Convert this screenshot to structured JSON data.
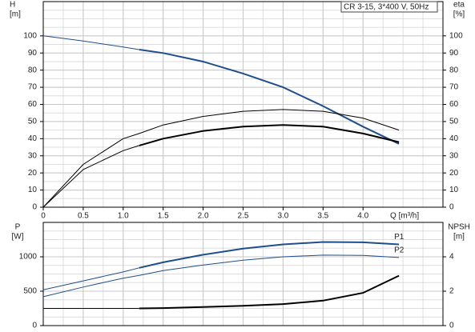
{
  "chart_data": [
    {
      "type": "line",
      "legend_text": "CR 3-15, 3*400 V, 50Hz",
      "ylabel": [
        "H",
        "[m]"
      ],
      "y2label": [
        "eta",
        "[%]"
      ],
      "xlabel": "Q [m³/h]",
      "x": [
        0,
        0.5,
        1.0,
        1.2,
        1.5,
        2.0,
        2.5,
        3.0,
        3.5,
        4.0,
        4.45
      ],
      "xlim": [
        0,
        5
      ],
      "xticks": [
        0,
        0.5,
        {
          "value": 1,
          "label": "1.0"
        },
        1.5,
        {
          "value": 2,
          "label": "2.0"
        },
        2.5,
        {
          "value": 3,
          "label": "3.0"
        },
        3.5,
        {
          "value": 4,
          "label": "4.0"
        }
      ],
      "ylim": [
        0,
        120
      ],
      "yticks": [
        0,
        10,
        20,
        30,
        40,
        50,
        60,
        70,
        80,
        90,
        100
      ],
      "y2lim": [
        0,
        120
      ],
      "y2ticks": [
        0,
        10,
        20,
        30,
        40,
        50,
        60,
        70,
        80,
        90,
        100
      ],
      "grid": true,
      "series": [
        {
          "color": "#1f4e8c",
          "line_width": 1,
          "values": [
            100,
            97,
            93.5,
            92,
            null,
            null,
            null,
            null,
            null,
            null,
            null
          ]
        },
        {
          "color": "#1f4e8c",
          "line_width": 2,
          "values": [
            null,
            null,
            null,
            92,
            90,
            85,
            78,
            70,
            59,
            47,
            37
          ]
        },
        {
          "color": "#000000",
          "line_width": 1,
          "axis": "y2",
          "values": [
            0,
            25,
            40,
            43,
            48,
            53,
            56,
            57,
            56,
            52,
            45
          ]
        },
        {
          "color": "#000000",
          "line_width": 1,
          "axis": "y2",
          "values": [
            0,
            22,
            33,
            36,
            null,
            null,
            null,
            null,
            null,
            null,
            null
          ]
        },
        {
          "color": "#000000",
          "line_width": 2,
          "axis": "y2",
          "values": [
            null,
            null,
            null,
            36,
            40,
            44.5,
            47,
            48,
            47,
            43,
            38
          ]
        }
      ]
    },
    {
      "type": "line",
      "ylabel": [
        "P",
        "[W]"
      ],
      "y2label": [
        "NPSH",
        "[m]"
      ],
      "x": [
        0,
        0.5,
        1.0,
        1.2,
        1.5,
        2.0,
        2.5,
        3.0,
        3.5,
        4.0,
        4.45
      ],
      "xlim": [
        0,
        5
      ],
      "ylim": [
        0,
        1500
      ],
      "yticks": [
        0,
        500,
        1000
      ],
      "y2lim": [
        0,
        6
      ],
      "y2ticks": [
        0,
        2,
        4
      ],
      "grid": true,
      "series": [
        {
          "color": "#1f4e8c",
          "line_width": 1,
          "values": [
            520,
            650,
            780,
            840,
            null,
            null,
            null,
            null,
            null,
            null,
            null
          ]
        },
        {
          "name": "P1",
          "color": "#1f4e8c",
          "line_width": 2,
          "values": [
            null,
            null,
            null,
            840,
            920,
            1030,
            1120,
            1180,
            1215,
            1210,
            1180
          ]
        },
        {
          "name": "P2",
          "color": "#1f4e8c",
          "line_width": 1,
          "values": [
            420,
            560,
            690,
            730,
            800,
            880,
            950,
            1000,
            1025,
            1020,
            990
          ]
        },
        {
          "color": "#000000",
          "line_width": 1,
          "axis": "y2",
          "values": [
            1.0,
            1.0,
            1.0,
            1.0,
            null,
            null,
            null,
            null,
            null,
            null,
            null
          ]
        },
        {
          "color": "#000000",
          "line_width": 2,
          "axis": "y2",
          "values": [
            null,
            null,
            null,
            1.0,
            1.02,
            1.08,
            1.15,
            1.25,
            1.45,
            1.9,
            2.9
          ]
        }
      ]
    }
  ]
}
